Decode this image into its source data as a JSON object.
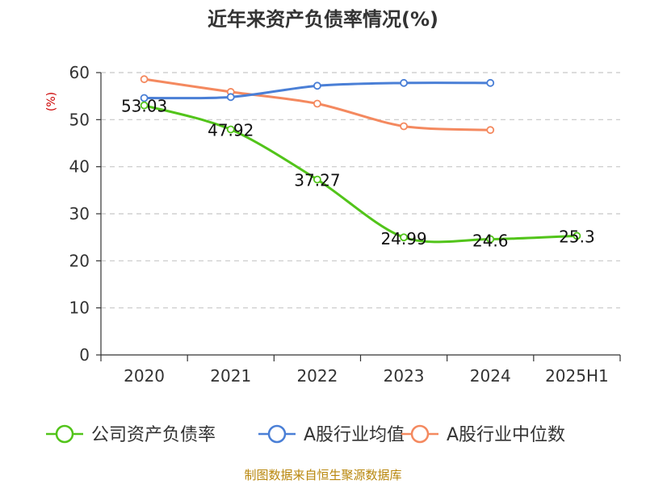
{
  "chart_data": {
    "type": "line",
    "title": "近年来资产负债率情况(%)",
    "ylabel": "(%)",
    "xlabel": "",
    "categories": [
      "2020",
      "2021",
      "2022",
      "2023",
      "2024",
      "2025H1"
    ],
    "ylim": [
      0,
      60
    ],
    "yticks": [
      0,
      10,
      20,
      30,
      40,
      50,
      60
    ],
    "grid": true,
    "legend_position": "bottom",
    "series": [
      {
        "name": "公司资产负债率",
        "color": "#52c41a",
        "values": [
          53.03,
          47.92,
          37.27,
          24.99,
          24.6,
          25.3
        ],
        "labels": [
          "53.03",
          "47.92",
          "37.27",
          "24.99",
          "24.6",
          "25.3"
        ]
      },
      {
        "name": "A股行业均值",
        "color": "#4a7fd6",
        "values": [
          54.6,
          54.8,
          57.2,
          57.8,
          57.8,
          null
        ]
      },
      {
        "name": "A股行业中位数",
        "color": "#f4895f",
        "values": [
          58.6,
          55.9,
          53.4,
          48.6,
          47.8,
          null
        ]
      }
    ]
  },
  "source": "制图数据来自恒生聚源数据库"
}
